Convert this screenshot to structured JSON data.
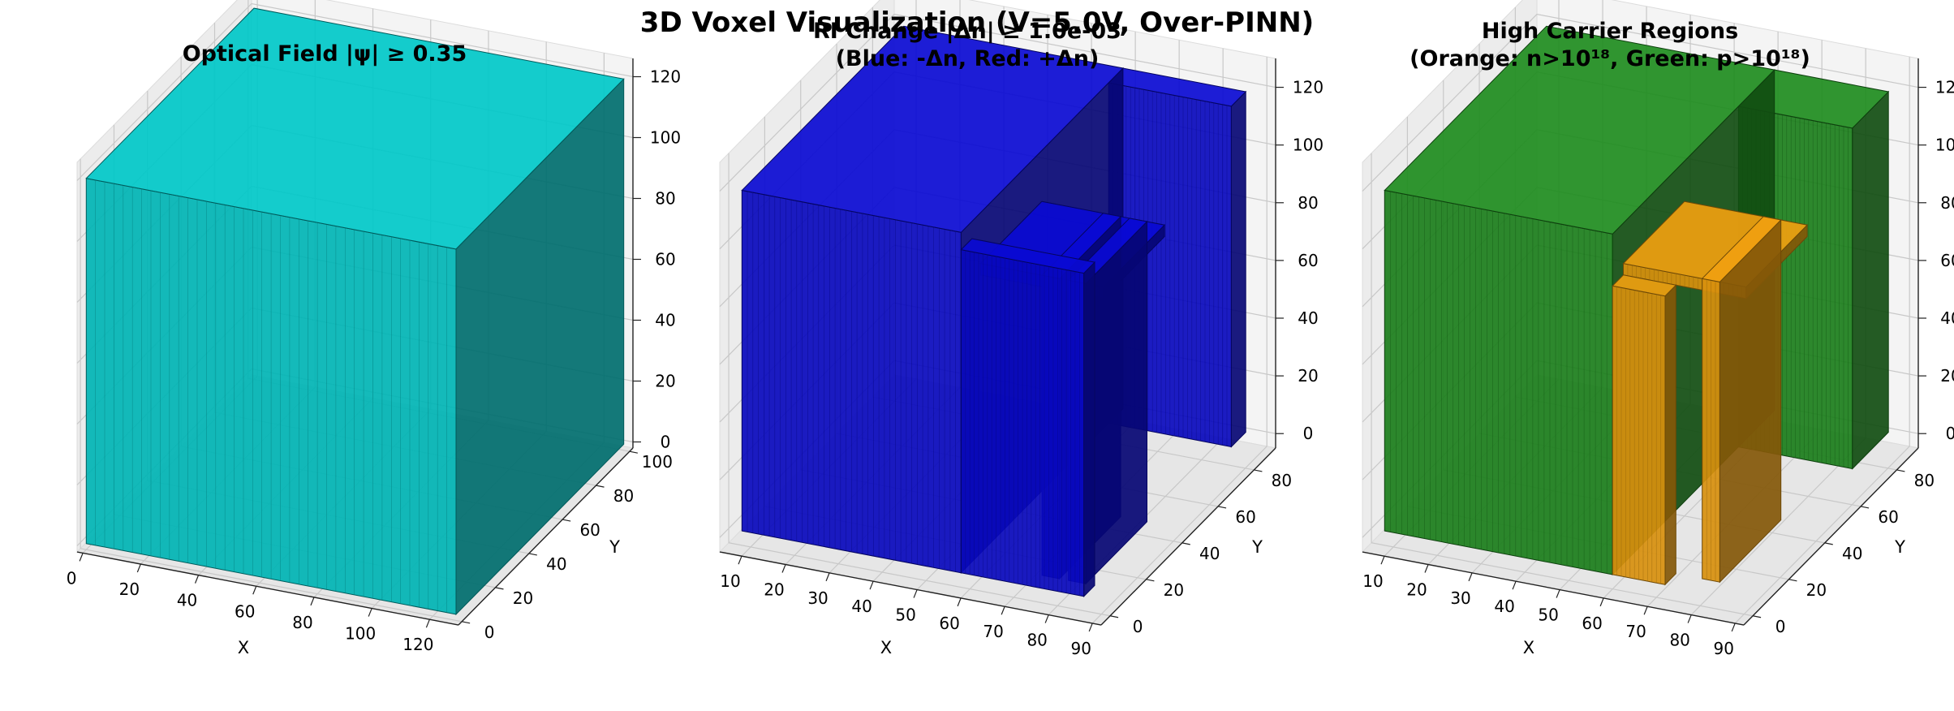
{
  "figure": {
    "suptitle": "3D Voxel Visualization (V=5.0V, Over-PINN)"
  },
  "chart_data": [
    {
      "type": "voxel3d",
      "title": "Optical Field |ψ| ≥ 0.35",
      "xlabel": "X",
      "ylabel": "Y",
      "zlabel": "",
      "x_ticks": [
        0,
        20,
        40,
        60,
        80,
        100,
        120
      ],
      "y_ticks": [
        0,
        20,
        40,
        60,
        80,
        100
      ],
      "z_ticks": [
        0,
        20,
        40,
        60,
        80,
        100,
        120
      ],
      "xlim": [
        -2,
        130
      ],
      "ylim": [
        -2,
        102
      ],
      "zlim": [
        -2,
        126
      ],
      "grid": true,
      "series": [
        {
          "color": "#00c8c8",
          "blocks": [
            {
              "x": [
                0,
                128
              ],
              "y": [
                0,
                100
              ],
              "z": [
                0,
                120
              ]
            }
          ]
        }
      ]
    },
    {
      "type": "voxel3d",
      "title": "RI Change |Δn| ≥ 1.0e-03\n(Blue: -Δn, Red: +Δn)",
      "xlabel": "X",
      "ylabel": "Y",
      "zlabel": "",
      "x_ticks": [
        10,
        20,
        30,
        40,
        50,
        60,
        70,
        80,
        90
      ],
      "y_ticks": [
        0,
        20,
        40,
        60,
        80
      ],
      "z_ticks": [
        0,
        20,
        40,
        60,
        80,
        100,
        120
      ],
      "xlim": [
        5,
        92
      ],
      "ylim": [
        -5,
        92
      ],
      "zlim": [
        -5,
        130
      ],
      "grid": true,
      "series": [
        {
          "color": "#0a0ad2",
          "blocks": [
            {
              "x": [
                8,
                58
              ],
              "y": [
                0,
                90
              ],
              "z": [
                0,
                118
              ]
            },
            {
              "x": [
                58,
                86
              ],
              "y": [
                0,
                6
              ],
              "z": [
                0,
                112
              ]
            },
            {
              "x": [
                58,
                86
              ],
              "y": [
                82,
                90
              ],
              "z": [
                0,
                118
              ]
            },
            {
              "x": [
                60,
                88
              ],
              "y": [
                6,
                40
              ],
              "z": [
                100,
                104
              ]
            },
            {
              "x": [
                74,
                78
              ],
              "y": [
                6,
                40
              ],
              "z": [
                0,
                104
              ]
            },
            {
              "x": [
                80,
                84
              ],
              "y": [
                6,
                40
              ],
              "z": [
                0,
                104
              ]
            }
          ]
        }
      ]
    },
    {
      "type": "voxel3d",
      "title": "High Carrier Regions\n(Orange: n>10¹⁸, Green: p>10¹⁸)",
      "xlabel": "X",
      "ylabel": "Y",
      "zlabel": "",
      "x_ticks": [
        10,
        20,
        30,
        40,
        50,
        60,
        70,
        80,
        90
      ],
      "y_ticks": [
        0,
        20,
        40,
        60,
        80
      ],
      "z_ticks": [
        0,
        20,
        40,
        60,
        80,
        100,
        120
      ],
      "xlim": [
        5,
        92
      ],
      "ylim": [
        -5,
        92
      ],
      "zlim": [
        -5,
        130
      ],
      "grid": true,
      "series": [
        {
          "color": "#1e8c1e",
          "blocks": [
            {
              "x": [
                8,
                60
              ],
              "y": [
                0,
                90
              ],
              "z": [
                0,
                118
              ]
            },
            {
              "x": [
                60,
                86
              ],
              "y": [
                70,
                90
              ],
              "z": [
                0,
                118
              ]
            }
          ]
        },
        {
          "color": "#f0a010",
          "blocks": [
            {
              "x": [
                60,
                72
              ],
              "y": [
                0,
                6
              ],
              "z": [
                0,
                100
              ]
            },
            {
              "x": [
                60,
                88
              ],
              "y": [
                6,
                40
              ],
              "z": [
                100,
                104
              ]
            },
            {
              "x": [
                78,
                82
              ],
              "y": [
                6,
                40
              ],
              "z": [
                0,
                104
              ]
            }
          ]
        }
      ]
    }
  ]
}
